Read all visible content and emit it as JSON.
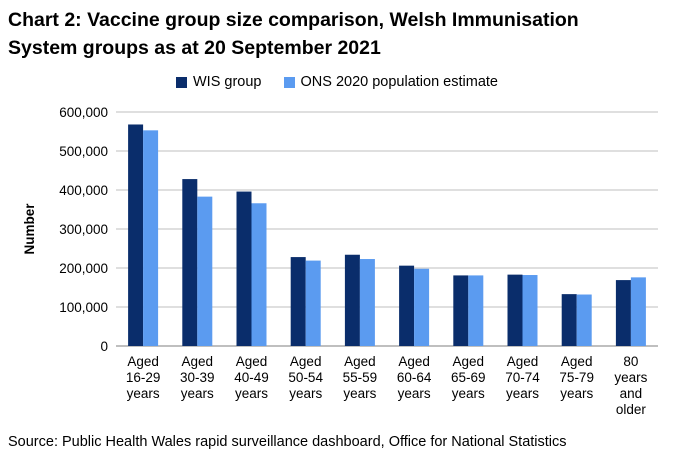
{
  "chart_data": {
    "type": "bar",
    "title_lines": [
      "Chart 2: Vaccine group size comparison, Welsh Immunisation",
      "System groups as at 20 September 2021"
    ],
    "xlabel": "",
    "ylabel": "Number",
    "ylim": [
      0,
      600000
    ],
    "yticks": [
      "0",
      "100,000",
      "200,000",
      "300,000",
      "400,000",
      "500,000",
      "600,000"
    ],
    "grid": true,
    "legend_position": "top",
    "categories": [
      [
        "Aged",
        "16-29",
        "years"
      ],
      [
        "Aged",
        "30-39",
        "years"
      ],
      [
        "Aged",
        "40-49",
        "years"
      ],
      [
        "Aged",
        "50-54",
        "years"
      ],
      [
        "Aged",
        "55-59",
        "years"
      ],
      [
        "Aged",
        "60-64",
        "years"
      ],
      [
        "Aged",
        "65-69",
        "years"
      ],
      [
        "Aged",
        "70-74",
        "years"
      ],
      [
        "Aged",
        "75-79",
        "years"
      ],
      [
        "80",
        "years",
        "and",
        "older"
      ]
    ],
    "series": [
      {
        "name": "WIS group",
        "color": "#0a2d6b",
        "values": [
          568000,
          428000,
          396000,
          228000,
          234000,
          206000,
          181000,
          183000,
          133000,
          169000
        ]
      },
      {
        "name": "ONS 2020 population estimate",
        "color": "#5b9bf0",
        "values": [
          553000,
          383000,
          366000,
          219000,
          223000,
          198000,
          181000,
          182000,
          132000,
          176000
        ]
      }
    ]
  },
  "source": "Source: Public Health Wales rapid surveillance dashboard, Office for National Statistics"
}
